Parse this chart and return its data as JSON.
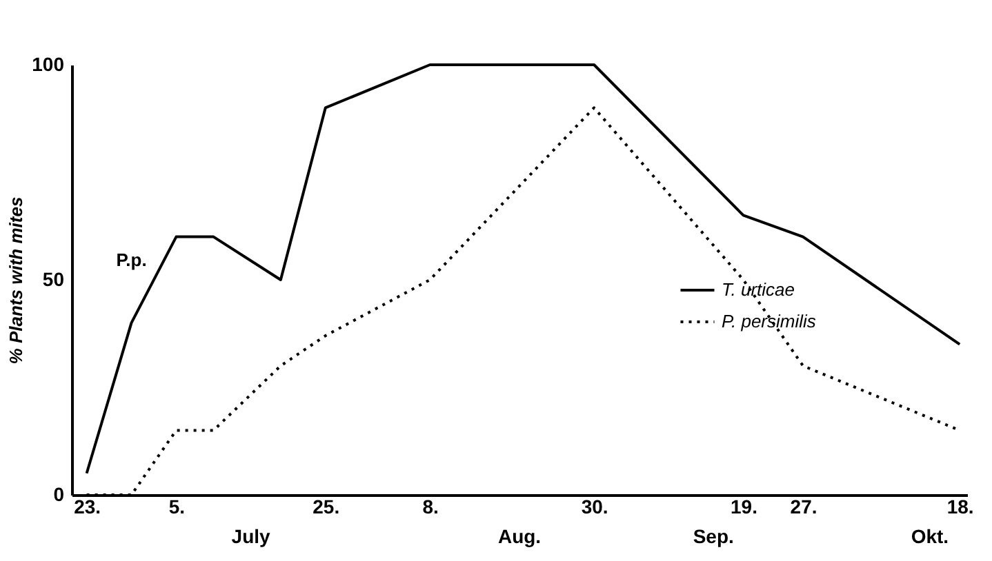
{
  "chart_data": {
    "type": "line",
    "ylabel": "% Plants with mites",
    "x": [
      "--06-23",
      "--06-29",
      "--07-05",
      "--07-10",
      "--07-19",
      "--07-25",
      "--08-08",
      "--08-30",
      "--09-19",
      "--09-27",
      "--10-18"
    ],
    "series": [
      {
        "name": "T. urticae",
        "color": "#000000",
        "line_style": "solid",
        "values": [
          5,
          40,
          60,
          60,
          50,
          90,
          100,
          100,
          65,
          60,
          35
        ]
      },
      {
        "name": "P. persimilis",
        "color": "#000000",
        "line_style": "dotted",
        "x": [
          "--06-23",
          "--06-29",
          "--07-05",
          "--07-10",
          "--07-19",
          "--07-25",
          "--08-08",
          "--08-30",
          "--09-19",
          "--09-27",
          "--10-18"
        ],
        "values": [
          0,
          0,
          15,
          15,
          30,
          37,
          50,
          90,
          50,
          30,
          15
        ]
      }
    ],
    "xlim": [
      "--06-21",
      "--10-19"
    ],
    "x2lim": [
      "--06-21",
      "--10-19"
    ],
    "xticks": [
      {
        "value": "--06-23",
        "label": "23."
      },
      {
        "value": "--07-05",
        "label": "5."
      },
      {
        "value": "--07-25",
        "label": "25."
      },
      {
        "value": "--08-08",
        "label": "8."
      },
      {
        "value": "--08-30",
        "label": "30."
      },
      {
        "value": "--09-19",
        "label": "19."
      },
      {
        "value": "--09-27",
        "label": "27."
      },
      {
        "value": "--10-18",
        "label": "18."
      }
    ],
    "x2ticks": [
      {
        "value": "--07-15",
        "label": "July"
      },
      {
        "value": "--08-20",
        "label": "Aug."
      },
      {
        "value": "--09-15",
        "label": "Sep."
      },
      {
        "value": "--10-14",
        "label": "Okt."
      }
    ],
    "ylim": [
      0,
      100
    ],
    "yticks": [
      0,
      50,
      100
    ],
    "grid": false,
    "legend": "right",
    "marker": "none",
    "annotations": [
      {
        "text": "P.p.",
        "x": "--06-29",
        "y": 40
      }
    ]
  }
}
